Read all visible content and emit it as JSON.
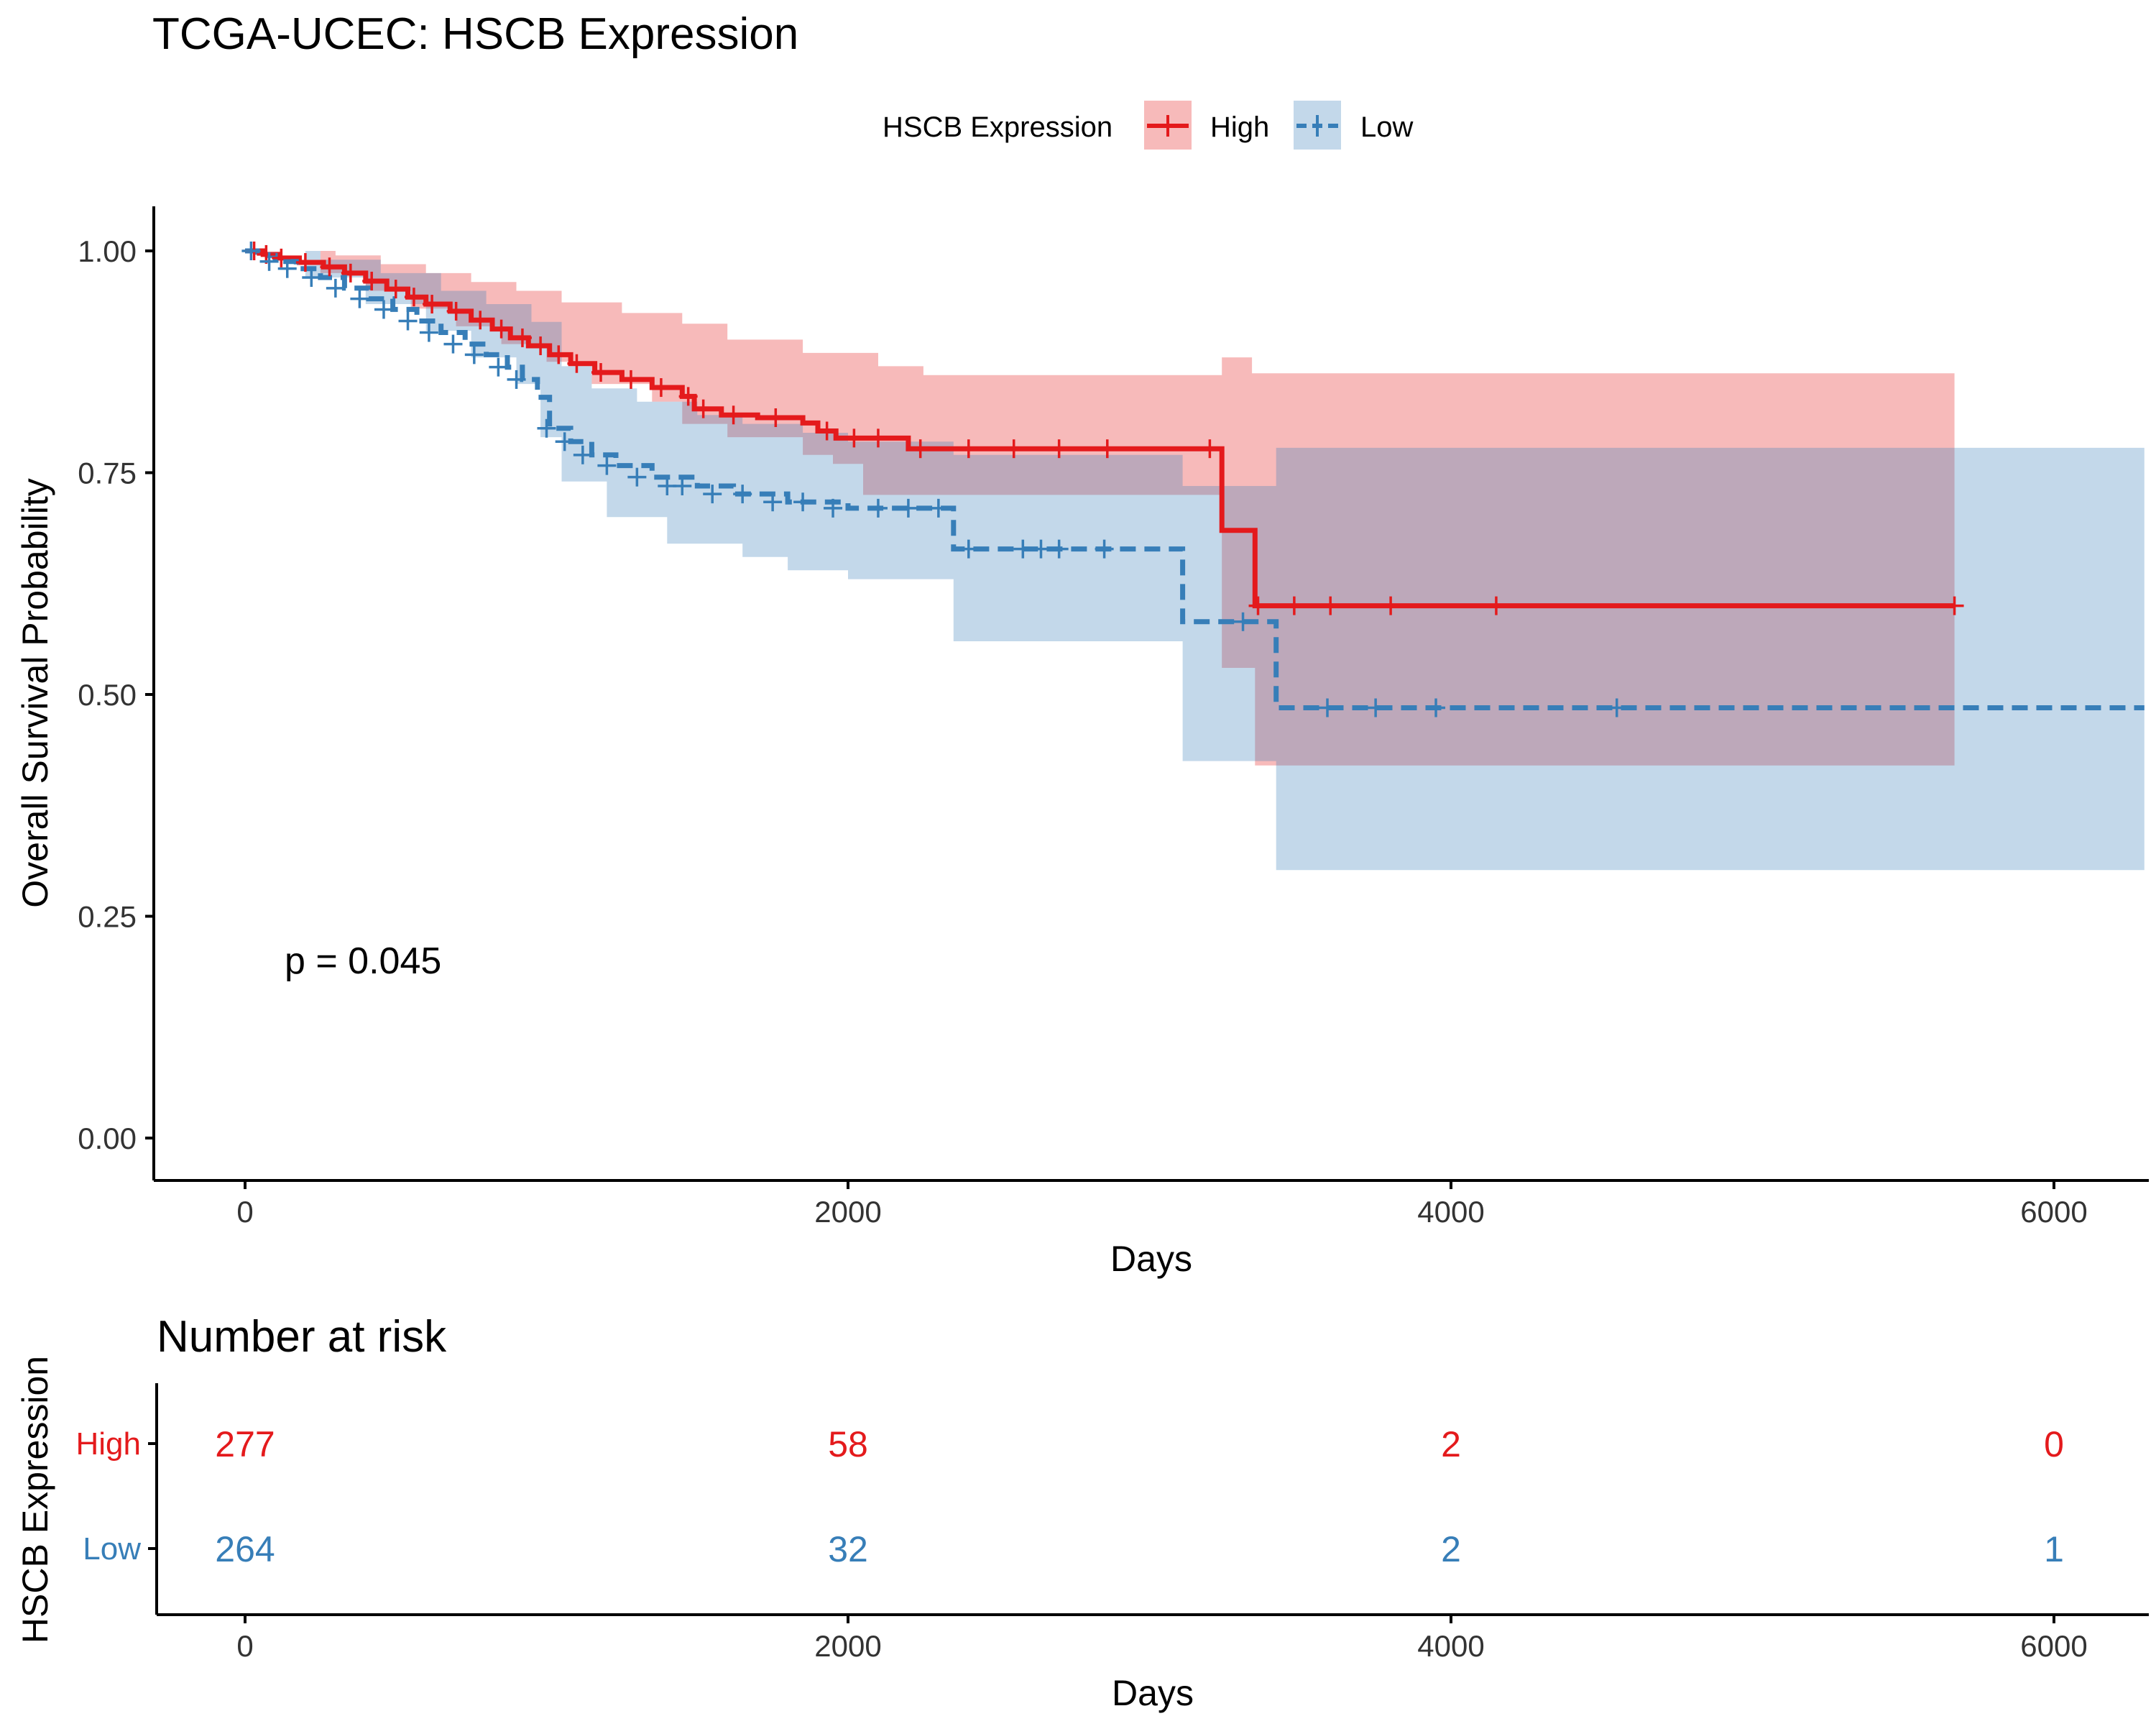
{
  "chart_data": [
    {
      "type": "line",
      "subtype": "kaplan-meier",
      "title": "TCGA-UCEC: HSCB Expression",
      "xlabel": "Days",
      "ylabel": "Overall Survival Probability",
      "xlim": [
        -300,
        6300
      ],
      "ylim": [
        -0.05,
        1.05
      ],
      "xticks": [
        0,
        2000,
        4000,
        6000
      ],
      "xtick_labels": [
        "0",
        "2000",
        "4000",
        "6000"
      ],
      "yticks": [
        0,
        0.25,
        0.5,
        0.75,
        1.0
      ],
      "ytick_labels": [
        "0.00",
        "0.25",
        "0.50",
        "0.75",
        "1.00"
      ],
      "grid": false,
      "legend_title": "HSCB Expression",
      "legend_position": "top",
      "annotation": "p = 0.045",
      "colors": {
        "High": "#E41A1C",
        "Low": "#377EB8",
        "overlap_line": "#A4374A"
      },
      "series": [
        {
          "name": "High",
          "line_style": "solid",
          "steps": [
            [
              0,
              1.0
            ],
            [
              60,
              0.996
            ],
            [
              110,
              0.992
            ],
            [
              180,
              0.987
            ],
            [
              260,
              0.982
            ],
            [
              330,
              0.975
            ],
            [
              400,
              0.966
            ],
            [
              470,
              0.957
            ],
            [
              540,
              0.948
            ],
            [
              600,
              0.94
            ],
            [
              680,
              0.932
            ],
            [
              750,
              0.922
            ],
            [
              820,
              0.912
            ],
            [
              880,
              0.902
            ],
            [
              940,
              0.893
            ],
            [
              1010,
              0.883
            ],
            [
              1080,
              0.873
            ],
            [
              1160,
              0.863
            ],
            [
              1250,
              0.855
            ],
            [
              1350,
              0.846
            ],
            [
              1450,
              0.836
            ],
            [
              1490,
              0.822
            ],
            [
              1580,
              0.815
            ],
            [
              1700,
              0.812
            ],
            [
              1850,
              0.806
            ],
            [
              1900,
              0.797
            ],
            [
              1960,
              0.789
            ],
            [
              2200,
              0.777
            ],
            [
              3240,
              0.685
            ],
            [
              3350,
              0.6
            ],
            [
              5670,
              0.6
            ]
          ],
          "ci_upper": [
            [
              0,
              1.0
            ],
            [
              300,
              0.995
            ],
            [
              450,
              0.985
            ],
            [
              600,
              0.975
            ],
            [
              750,
              0.965
            ],
            [
              900,
              0.955
            ],
            [
              1050,
              0.942
            ],
            [
              1250,
              0.93
            ],
            [
              1450,
              0.918
            ],
            [
              1600,
              0.9
            ],
            [
              1850,
              0.885
            ],
            [
              2100,
              0.87
            ],
            [
              2250,
              0.86
            ],
            [
              3240,
              0.88
            ],
            [
              3340,
              0.862
            ],
            [
              5670,
              0.862
            ]
          ],
          "ci_lower": [
            [
              0,
              1.0
            ],
            [
              250,
              0.975
            ],
            [
              400,
              0.955
            ],
            [
              550,
              0.935
            ],
            [
              700,
              0.915
            ],
            [
              850,
              0.895
            ],
            [
              1000,
              0.875
            ],
            [
              1150,
              0.85
            ],
            [
              1350,
              0.83
            ],
            [
              1450,
              0.805
            ],
            [
              1600,
              0.79
            ],
            [
              1850,
              0.77
            ],
            [
              1950,
              0.76
            ],
            [
              2050,
              0.725
            ],
            [
              3240,
              0.53
            ],
            [
              3350,
              0.42
            ],
            [
              5670,
              0.42
            ]
          ],
          "censor_marks": [
            [
              30,
              1.0
            ],
            [
              70,
              0.996
            ],
            [
              120,
              0.992
            ],
            [
              200,
              0.987
            ],
            [
              280,
              0.982
            ],
            [
              350,
              0.975
            ],
            [
              420,
              0.966
            ],
            [
              500,
              0.957
            ],
            [
              560,
              0.948
            ],
            [
              620,
              0.94
            ],
            [
              700,
              0.932
            ],
            [
              780,
              0.922
            ],
            [
              850,
              0.912
            ],
            [
              920,
              0.902
            ],
            [
              980,
              0.893
            ],
            [
              1040,
              0.883
            ],
            [
              1100,
              0.873
            ],
            [
              1180,
              0.863
            ],
            [
              1280,
              0.855
            ],
            [
              1380,
              0.846
            ],
            [
              1470,
              0.836
            ],
            [
              1520,
              0.822
            ],
            [
              1620,
              0.815
            ],
            [
              1760,
              0.812
            ],
            [
              1930,
              0.797
            ],
            [
              2020,
              0.789
            ],
            [
              2100,
              0.789
            ],
            [
              2240,
              0.777
            ],
            [
              2400,
              0.777
            ],
            [
              2550,
              0.777
            ],
            [
              2700,
              0.777
            ],
            [
              2860,
              0.777
            ],
            [
              3200,
              0.777
            ],
            [
              3360,
              0.6
            ],
            [
              3480,
              0.6
            ],
            [
              3600,
              0.6
            ],
            [
              3800,
              0.6
            ],
            [
              4150,
              0.6
            ],
            [
              5670,
              0.6
            ]
          ]
        },
        {
          "name": "Low",
          "line_style": "dashed",
          "steps": [
            [
              0,
              1.0
            ],
            [
              40,
              0.995
            ],
            [
              100,
              0.988
            ],
            [
              170,
              0.98
            ],
            [
              250,
              0.97
            ],
            [
              330,
              0.958
            ],
            [
              410,
              0.946
            ],
            [
              490,
              0.934
            ],
            [
              570,
              0.921
            ],
            [
              650,
              0.908
            ],
            [
              730,
              0.895
            ],
            [
              800,
              0.883
            ],
            [
              870,
              0.869
            ],
            [
              920,
              0.855
            ],
            [
              970,
              0.835
            ],
            [
              1010,
              0.8
            ],
            [
              1080,
              0.785
            ],
            [
              1150,
              0.77
            ],
            [
              1230,
              0.758
            ],
            [
              1350,
              0.745
            ],
            [
              1500,
              0.735
            ],
            [
              1620,
              0.726
            ],
            [
              1800,
              0.717
            ],
            [
              2000,
              0.71
            ],
            [
              2350,
              0.664
            ],
            [
              3110,
              0.582
            ],
            [
              3420,
              0.485
            ],
            [
              6300,
              0.485
            ]
          ],
          "ci_upper": [
            [
              0,
              1.0
            ],
            [
              250,
              0.99
            ],
            [
              450,
              0.975
            ],
            [
              650,
              0.955
            ],
            [
              800,
              0.94
            ],
            [
              950,
              0.92
            ],
            [
              1050,
              0.87
            ],
            [
              1150,
              0.845
            ],
            [
              1300,
              0.83
            ],
            [
              1500,
              0.815
            ],
            [
              1650,
              0.805
            ],
            [
              1850,
              0.795
            ],
            [
              2000,
              0.785
            ],
            [
              2350,
              0.77
            ],
            [
              3110,
              0.735
            ],
            [
              3420,
              0.778
            ],
            [
              6300,
              0.778
            ]
          ],
          "ci_lower": [
            [
              0,
              1.0
            ],
            [
              200,
              0.97
            ],
            [
              400,
              0.94
            ],
            [
              600,
              0.91
            ],
            [
              750,
              0.88
            ],
            [
              900,
              0.85
            ],
            [
              980,
              0.79
            ],
            [
              1050,
              0.74
            ],
            [
              1200,
              0.7
            ],
            [
              1400,
              0.67
            ],
            [
              1650,
              0.655
            ],
            [
              1800,
              0.64
            ],
            [
              2000,
              0.63
            ],
            [
              2350,
              0.56
            ],
            [
              3110,
              0.425
            ],
            [
              3420,
              0.302
            ],
            [
              6300,
              0.302
            ]
          ],
          "censor_marks": [
            [
              20,
              1.0
            ],
            [
              80,
              0.988
            ],
            [
              140,
              0.98
            ],
            [
              220,
              0.97
            ],
            [
              300,
              0.958
            ],
            [
              380,
              0.946
            ],
            [
              460,
              0.934
            ],
            [
              540,
              0.921
            ],
            [
              610,
              0.908
            ],
            [
              690,
              0.895
            ],
            [
              760,
              0.883
            ],
            [
              840,
              0.869
            ],
            [
              900,
              0.855
            ],
            [
              1000,
              0.8
            ],
            [
              1060,
              0.785
            ],
            [
              1120,
              0.77
            ],
            [
              1200,
              0.758
            ],
            [
              1300,
              0.745
            ],
            [
              1400,
              0.735
            ],
            [
              1450,
              0.735
            ],
            [
              1550,
              0.726
            ],
            [
              1650,
              0.726
            ],
            [
              1750,
              0.717
            ],
            [
              1850,
              0.717
            ],
            [
              1950,
              0.71
            ],
            [
              2100,
              0.71
            ],
            [
              2200,
              0.71
            ],
            [
              2300,
              0.71
            ],
            [
              2400,
              0.664
            ],
            [
              2580,
              0.664
            ],
            [
              2640,
              0.664
            ],
            [
              2700,
              0.664
            ],
            [
              2850,
              0.664
            ],
            [
              3310,
              0.582
            ],
            [
              3590,
              0.485
            ],
            [
              3750,
              0.485
            ],
            [
              3950,
              0.485
            ],
            [
              4550,
              0.485
            ]
          ]
        }
      ]
    },
    {
      "type": "table",
      "title": "Number at risk",
      "xlabel": "Days",
      "ylabel": "HSCB Expression",
      "xlim": [
        -300,
        6300
      ],
      "xticks": [
        0,
        2000,
        4000,
        6000
      ],
      "xtick_labels": [
        "0",
        "2000",
        "4000",
        "6000"
      ],
      "rows": [
        {
          "name": "High",
          "color": "#E41A1C",
          "values": [
            277,
            58,
            2,
            0
          ]
        },
        {
          "name": "Low",
          "color": "#377EB8",
          "values": [
            264,
            32,
            2,
            1
          ]
        }
      ]
    }
  ]
}
